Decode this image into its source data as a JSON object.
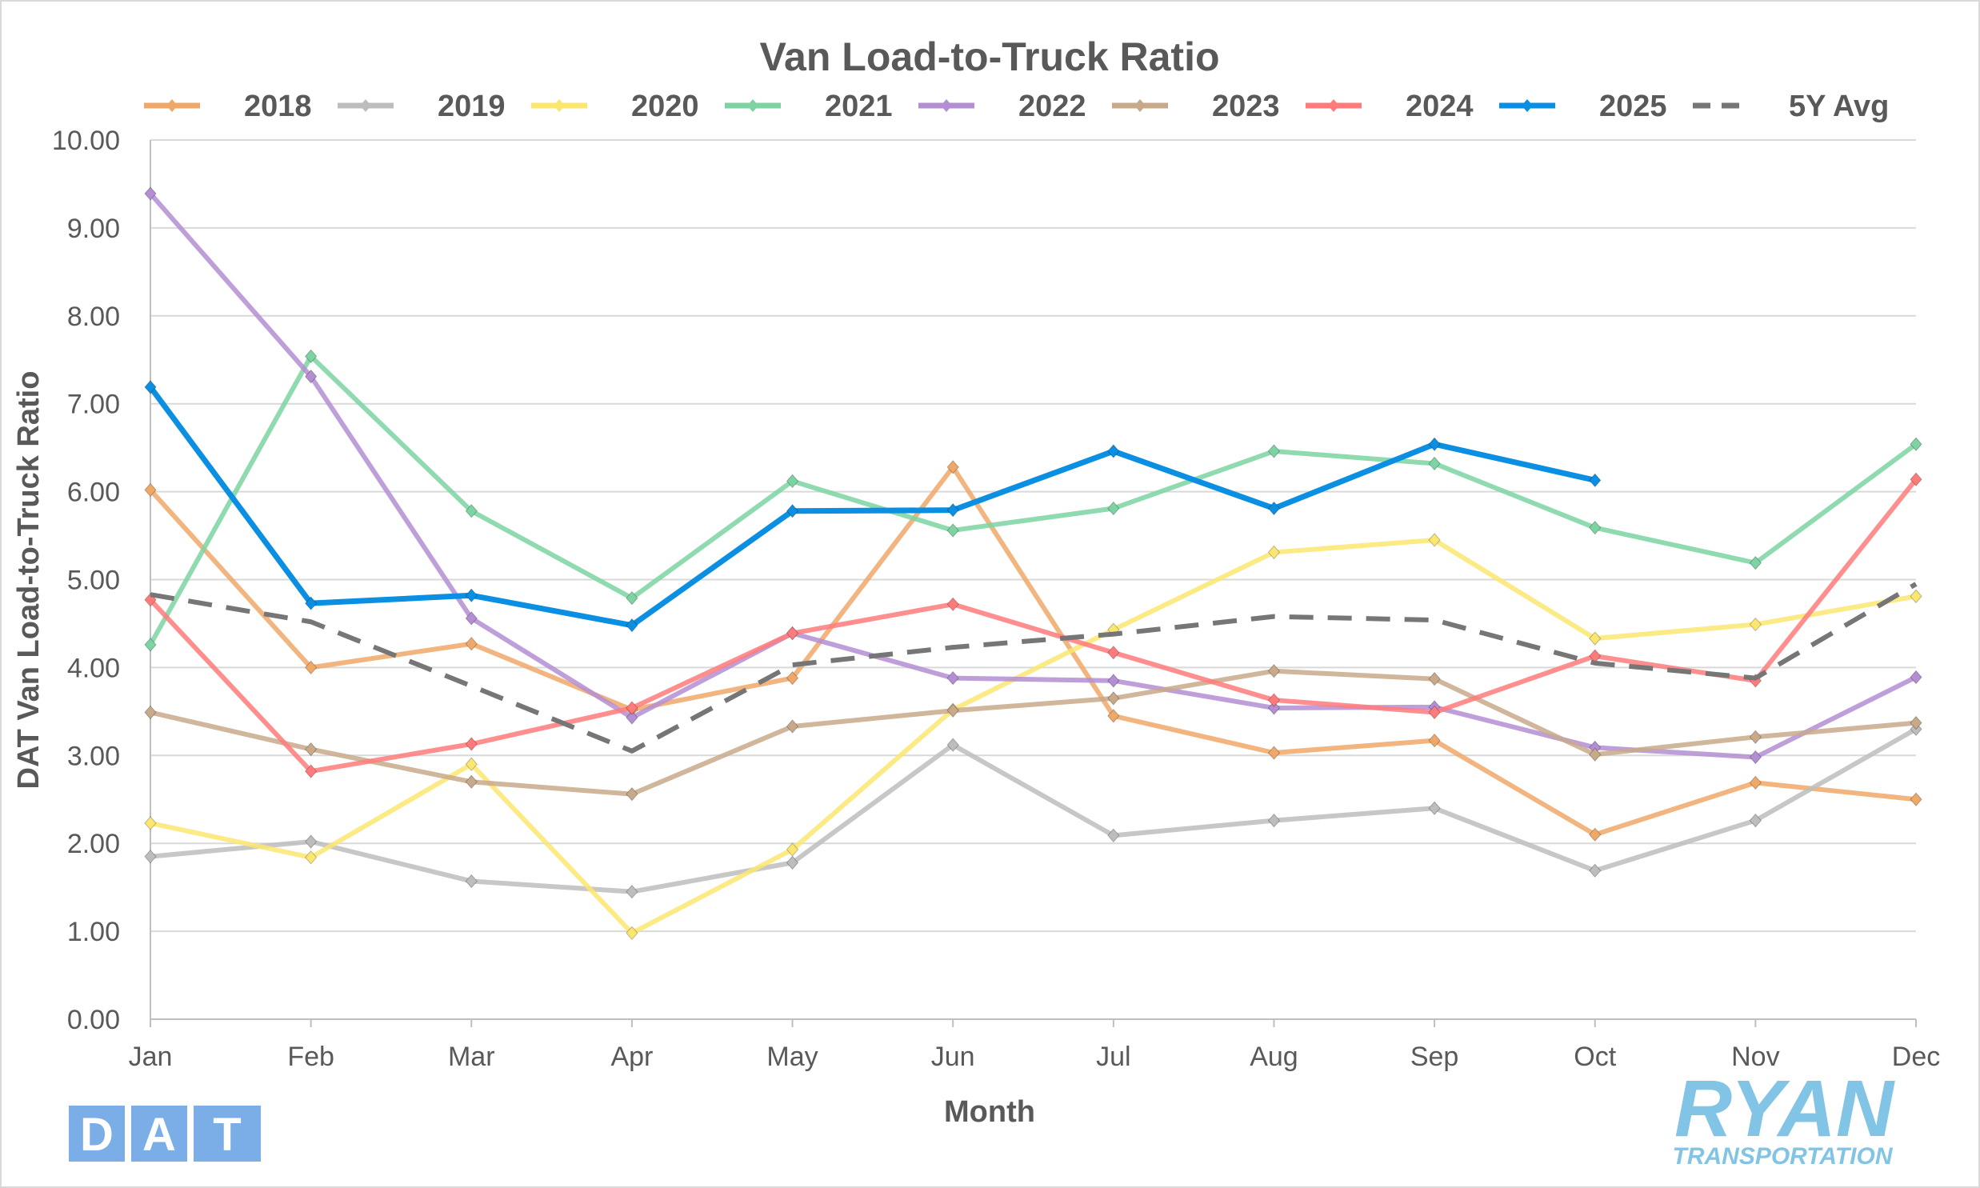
{
  "chart_data": {
    "type": "line",
    "title": "Van Load-to-Truck Ratio",
    "xlabel": "Month",
    "ylabel": "DAT Van Load-to-Truck Ratio",
    "ylim": [
      0,
      10
    ],
    "yticks": [
      "0.00",
      "1.00",
      "2.00",
      "3.00",
      "4.00",
      "5.00",
      "6.00",
      "7.00",
      "8.00",
      "9.00",
      "10.00"
    ],
    "categories": [
      "Jan",
      "Feb",
      "Mar",
      "Apr",
      "May",
      "Jun",
      "Jul",
      "Aug",
      "Sep",
      "Oct",
      "Nov",
      "Dec"
    ],
    "grid": "horizontal",
    "legend_position": "top",
    "series": [
      {
        "name": "2018",
        "color": "#F0A868",
        "marker": "diamond",
        "values": [
          6.02,
          4.0,
          4.27,
          3.52,
          3.88,
          6.28,
          3.45,
          3.03,
          3.17,
          2.1,
          2.69,
          2.5
        ]
      },
      {
        "name": "2019",
        "color": "#BDBDBD",
        "marker": "diamond",
        "values": [
          1.85,
          2.02,
          1.57,
          1.45,
          1.78,
          3.12,
          2.09,
          2.26,
          2.4,
          1.69,
          2.26,
          3.3
        ]
      },
      {
        "name": "2020",
        "color": "#FBE670",
        "marker": "diamond",
        "values": [
          2.23,
          1.84,
          2.9,
          0.98,
          1.93,
          3.52,
          4.43,
          5.31,
          5.45,
          4.33,
          4.49,
          4.81
        ]
      },
      {
        "name": "2021",
        "color": "#7DD3A2",
        "marker": "diamond",
        "values": [
          4.26,
          7.54,
          5.78,
          4.79,
          6.12,
          5.56,
          5.81,
          6.46,
          6.32,
          5.59,
          5.19,
          6.54
        ]
      },
      {
        "name": "2022",
        "color": "#B48ED2",
        "marker": "diamond",
        "values": [
          9.39,
          7.31,
          4.56,
          3.43,
          4.39,
          3.88,
          3.85,
          3.54,
          3.55,
          3.09,
          2.98,
          3.89
        ]
      },
      {
        "name": "2023",
        "color": "#C8A98A",
        "marker": "diamond",
        "values": [
          3.49,
          3.07,
          2.7,
          2.56,
          3.33,
          3.51,
          3.65,
          3.96,
          3.87,
          3.01,
          3.21,
          3.37
        ]
      },
      {
        "name": "2024",
        "color": "#FF7B7B",
        "marker": "diamond",
        "values": [
          4.77,
          2.82,
          3.13,
          3.54,
          4.39,
          4.72,
          4.17,
          3.63,
          3.49,
          4.13,
          3.85,
          6.14
        ]
      },
      {
        "name": "2025",
        "color": "#0A8FE3",
        "marker": "diamond",
        "values": [
          7.19,
          4.73,
          4.82,
          4.48,
          5.78,
          5.79,
          6.46,
          5.81,
          6.54,
          6.13,
          null,
          null
        ]
      },
      {
        "name": "5Y Avg",
        "color": "#767676",
        "dashed": true,
        "values": [
          4.83,
          4.52,
          3.79,
          3.05,
          4.03,
          4.23,
          4.38,
          4.58,
          4.54,
          4.05,
          3.88,
          4.95
        ]
      }
    ]
  },
  "logos": {
    "left": "DAT",
    "right_main": "RYAN",
    "right_sub": "TRANSPORTATION"
  }
}
